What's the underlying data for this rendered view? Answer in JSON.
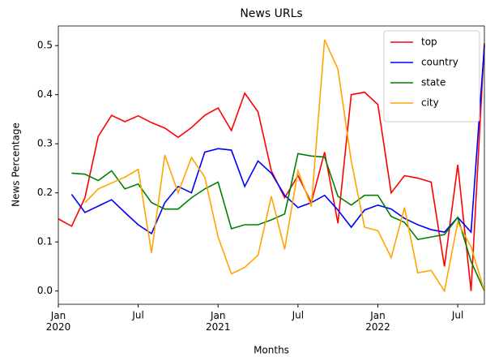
{
  "chart_data": {
    "type": "line",
    "title": "News URLs",
    "xlabel": "Months",
    "ylabel": "News Percentage",
    "x": [
      "2020-01",
      "2020-02",
      "2020-03",
      "2020-04",
      "2020-05",
      "2020-06",
      "2020-07",
      "2020-08",
      "2020-09",
      "2020-10",
      "2020-11",
      "2020-12",
      "2021-01",
      "2021-02",
      "2021-03",
      "2021-04",
      "2021-05",
      "2021-06",
      "2021-07",
      "2021-08",
      "2021-09",
      "2021-10",
      "2021-11",
      "2021-12",
      "2022-01",
      "2022-02",
      "2022-03",
      "2022-04",
      "2022-05",
      "2022-06",
      "2022-07",
      "2022-08",
      "2022-09"
    ],
    "series": [
      {
        "name": "top",
        "color": "#ff0000",
        "values": [
          0.147,
          0.132,
          0.19,
          0.315,
          0.358,
          0.345,
          0.357,
          0.343,
          0.332,
          0.313,
          0.333,
          0.358,
          0.373,
          0.327,
          0.403,
          0.365,
          0.245,
          0.19,
          0.235,
          0.18,
          0.283,
          0.138,
          0.4,
          0.405,
          0.38,
          0.2,
          0.235,
          0.23,
          0.222,
          0.05,
          0.257,
          0.0,
          0.505
        ]
      },
      {
        "name": "country",
        "color": "#0000ff",
        "values": [
          null,
          0.197,
          0.16,
          0.173,
          0.186,
          0.16,
          0.135,
          0.117,
          0.18,
          0.213,
          0.2,
          0.283,
          0.29,
          0.287,
          0.213,
          0.265,
          0.24,
          0.195,
          0.17,
          0.18,
          0.195,
          0.165,
          0.13,
          0.165,
          0.175,
          0.167,
          0.148,
          0.135,
          0.125,
          0.12,
          0.15,
          0.12,
          0.5
        ]
      },
      {
        "name": "state",
        "color": "#008000",
        "values": [
          null,
          0.24,
          0.238,
          0.225,
          0.245,
          0.208,
          0.218,
          0.18,
          0.167,
          0.167,
          0.19,
          0.208,
          0.222,
          0.127,
          0.135,
          0.135,
          0.145,
          0.157,
          0.28,
          0.275,
          0.273,
          0.193,
          0.175,
          0.195,
          0.195,
          0.152,
          0.14,
          0.105,
          0.11,
          0.115,
          0.15,
          0.06,
          0.0
        ]
      },
      {
        "name": "city",
        "color": "#ffa500",
        "values": [
          null,
          null,
          0.18,
          0.208,
          0.22,
          0.232,
          0.248,
          0.078,
          0.277,
          0.2,
          0.272,
          0.232,
          0.11,
          0.035,
          0.048,
          0.073,
          0.193,
          0.085,
          0.245,
          0.172,
          0.512,
          0.452,
          0.265,
          0.13,
          0.123,
          0.068,
          0.17,
          0.037,
          0.042,
          0.0,
          0.14,
          0.09,
          0.0
        ]
      }
    ],
    "xlim": [
      "2020-01",
      "2022-09"
    ],
    "xticks": [
      {
        "value": "2020-01",
        "label": "Jan\n2020"
      },
      {
        "value": "2020-07",
        "label": "Jul"
      },
      {
        "value": "2021-01",
        "label": "Jan\n2021"
      },
      {
        "value": "2021-07",
        "label": "Jul"
      },
      {
        "value": "2022-01",
        "label": "Jan\n2022"
      },
      {
        "value": "2022-07",
        "label": "Jul"
      }
    ],
    "ylim": [
      -0.027,
      0.54
    ],
    "yticks": [
      {
        "value": 0,
        "label": "0.0"
      },
      0.1,
      0.2,
      0.3,
      0.4,
      0.5
    ],
    "legend": "upper right",
    "grid": false
  }
}
